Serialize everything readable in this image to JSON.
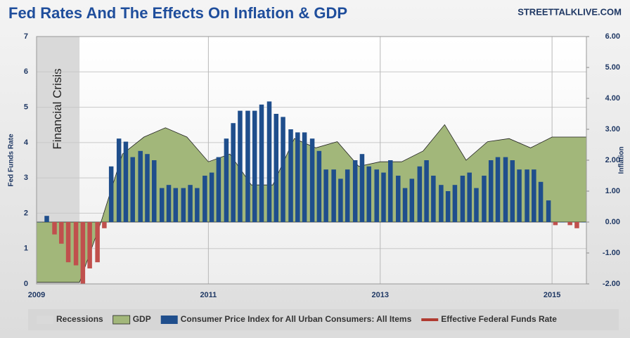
{
  "chart_data": {
    "type": "combo",
    "title": "Fed Rates And The Effects On Inflation & GDP",
    "subtitle": "STREETTALKLIVE.COM",
    "ylabel": "Fed Funds Rate",
    "y2label": "Inflation",
    "xlim": [
      2009,
      2015.4
    ],
    "xticks": [
      2009,
      2011,
      2013,
      2015
    ],
    "ylim": [
      0,
      7
    ],
    "yticks": [
      0,
      1,
      2,
      3,
      4,
      5,
      6,
      7
    ],
    "y2lim": [
      -2,
      6
    ],
    "y2ticks": [
      {
        "value": 6,
        "label": "6.00"
      },
      {
        "value": 5,
        "label": "5.00"
      },
      {
        "value": 4,
        "label": "4.00"
      },
      {
        "value": 3,
        "label": "3.00"
      },
      {
        "value": 2,
        "label": "2.00"
      },
      {
        "value": 1,
        "label": "1.00"
      },
      {
        "value": 0,
        "label": "0.00"
      },
      {
        "value": -1,
        "label": "-1.00"
      },
      {
        "value": -2,
        "label": "-2.00"
      }
    ],
    "grid": true,
    "annotations": [
      {
        "text": "Financial Crisis",
        "x": 2009.25
      }
    ],
    "series": [
      {
        "name": "Recessions",
        "type": "band",
        "color": "#d9d9d9",
        "x": [
          2009,
          2009.5
        ]
      },
      {
        "name": "GDP",
        "type": "area",
        "axis": "y2",
        "color": "#a2b77a",
        "x": [
          2009,
          2009.25,
          2009.5,
          2009.75,
          2010,
          2010.25,
          2010.5,
          2010.75,
          2011,
          2011.25,
          2011.5,
          2011.75,
          2012,
          2012.25,
          2012.5,
          2012.75,
          2013,
          2013.25,
          2013.5,
          2013.75,
          2014,
          2014.25,
          2014.5,
          2014.75,
          2015,
          2015.4
        ],
        "values": [
          -1.95,
          -1.95,
          -1.95,
          0.0,
          2.2,
          2.75,
          3.05,
          2.75,
          1.95,
          2.2,
          1.2,
          1.2,
          2.7,
          2.4,
          2.6,
          1.8,
          1.95,
          1.95,
          2.3,
          3.15,
          2.0,
          2.6,
          2.7,
          2.4,
          2.75,
          2.75
        ]
      },
      {
        "name": "Consumer Price Index for All Urban Consumers: All Items",
        "type": "bar",
        "axis": "y2",
        "color": "#1f4e8c",
        "negative_color": "#c0504d",
        "x": [
          2009,
          2009.08,
          2009.17,
          2009.25,
          2009.33,
          2009.42,
          2009.5,
          2009.58,
          2009.67,
          2009.75,
          2009.83,
          2009.92,
          2010,
          2010.08,
          2010.17,
          2010.25,
          2010.33,
          2010.42,
          2010.5,
          2010.58,
          2010.67,
          2010.75,
          2010.83,
          2010.92,
          2011,
          2011.08,
          2011.17,
          2011.25,
          2011.33,
          2011.42,
          2011.5,
          2011.58,
          2011.67,
          2011.75,
          2011.83,
          2011.92,
          2012,
          2012.08,
          2012.17,
          2012.25,
          2012.33,
          2012.42,
          2012.5,
          2012.58,
          2012.67,
          2012.75,
          2012.83,
          2012.92,
          2013,
          2013.08,
          2013.17,
          2013.25,
          2013.33,
          2013.42,
          2013.5,
          2013.58,
          2013.67,
          2013.75,
          2013.83,
          2013.92,
          2014,
          2014.08,
          2014.17,
          2014.25,
          2014.33,
          2014.42,
          2014.5,
          2014.58,
          2014.67,
          2014.75,
          2014.83,
          2014.92,
          2015,
          2015.08,
          2015.17,
          2015.25,
          2015.33
        ],
        "values": [
          0.0,
          0.2,
          -0.4,
          -0.7,
          -1.3,
          -1.4,
          -2.0,
          -1.5,
          -1.3,
          -0.2,
          1.8,
          2.7,
          2.6,
          2.1,
          2.3,
          2.2,
          2.0,
          1.1,
          1.2,
          1.1,
          1.1,
          1.2,
          1.1,
          1.5,
          1.6,
          2.1,
          2.7,
          3.2,
          3.6,
          3.6,
          3.6,
          3.8,
          3.9,
          3.5,
          3.4,
          3.0,
          2.9,
          2.9,
          2.7,
          2.3,
          1.7,
          1.7,
          1.4,
          1.7,
          2.0,
          2.2,
          1.8,
          1.7,
          1.6,
          2.0,
          1.5,
          1.1,
          1.4,
          1.8,
          2.0,
          1.5,
          1.2,
          1.0,
          1.2,
          1.5,
          1.6,
          1.1,
          1.5,
          2.0,
          2.1,
          2.1,
          2.0,
          1.7,
          1.7,
          1.7,
          1.3,
          0.7,
          -0.1,
          0.0,
          -0.1,
          -0.2,
          0.0
        ]
      },
      {
        "name": "Effective Federal Funds Rate",
        "type": "line",
        "color": "#b03a30",
        "x": [
          2009,
          2009.08,
          2009.17,
          2009.25,
          2009.33,
          2009.42,
          2009.5,
          2009.58,
          2009.67,
          2009.75,
          2009.83,
          2009.92,
          2010,
          2010.08,
          2010.17,
          2010.25,
          2010.33,
          2010.42,
          2010.5,
          2010.58,
          2010.67,
          2010.75,
          2010.83,
          2010.92,
          2011,
          2011.08,
          2011.17,
          2011.25,
          2011.33,
          2011.42,
          2011.5,
          2011.58,
          2011.67,
          2011.75,
          2011.83,
          2011.92,
          2012,
          2012.08,
          2012.17,
          2012.25,
          2012.33,
          2012.42,
          2012.5,
          2012.58,
          2012.67,
          2012.75,
          2012.83,
          2012.92,
          2013,
          2013.08,
          2013.17,
          2013.25,
          2013.33,
          2013.42,
          2013.5,
          2013.58,
          2013.67,
          2013.75,
          2013.83,
          2013.92,
          2014,
          2014.08,
          2014.17,
          2014.25,
          2014.33,
          2014.42,
          2014.5,
          2014.58,
          2014.67,
          2014.75,
          2014.83,
          2014.92,
          2015,
          2015.08,
          2015.17,
          2015.25,
          2015.33
        ],
        "values": [
          0.15,
          0.22,
          0.18,
          0.15,
          0.18,
          0.21,
          0.16,
          0.16,
          0.15,
          0.12,
          0.12,
          0.12,
          0.11,
          0.13,
          0.16,
          0.2,
          0.2,
          0.18,
          0.18,
          0.19,
          0.19,
          0.19,
          0.19,
          0.18,
          0.17,
          0.16,
          0.14,
          0.1,
          0.09,
          0.09,
          0.07,
          0.1,
          0.08,
          0.07,
          0.08,
          0.07,
          0.08,
          0.1,
          0.13,
          0.14,
          0.16,
          0.16,
          0.16,
          0.13,
          0.14,
          0.16,
          0.16,
          0.16,
          0.14,
          0.15,
          0.14,
          0.15,
          0.11,
          0.09,
          0.09,
          0.08,
          0.08,
          0.09,
          0.08,
          0.09,
          0.07,
          0.07,
          0.08,
          0.09,
          0.09,
          0.1,
          0.09,
          0.09,
          0.09,
          0.09,
          0.09,
          0.12,
          0.11,
          0.11,
          0.11,
          0.12,
          0.12
        ]
      }
    ]
  }
}
